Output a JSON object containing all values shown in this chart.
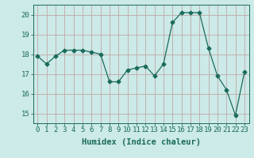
{
  "x": [
    0,
    1,
    2,
    3,
    4,
    5,
    6,
    7,
    8,
    9,
    10,
    11,
    12,
    13,
    14,
    15,
    16,
    17,
    18,
    19,
    20,
    21,
    22,
    23
  ],
  "y": [
    17.9,
    17.5,
    17.9,
    18.2,
    18.2,
    18.2,
    18.1,
    18.0,
    16.6,
    16.6,
    17.2,
    17.3,
    17.4,
    16.9,
    17.5,
    19.6,
    20.1,
    20.1,
    20.1,
    18.3,
    16.9,
    16.2,
    14.9,
    17.1
  ],
  "line_color": "#1a6b5a",
  "marker": "D",
  "marker_size": 2.5,
  "bg_color": "#cceae7",
  "grid_color": "#c0a8a8",
  "xlabel": "Humidex (Indice chaleur)",
  "xlim": [
    -0.5,
    23.5
  ],
  "ylim": [
    14.5,
    20.5
  ],
  "yticks": [
    15,
    16,
    17,
    18,
    19,
    20
  ],
  "xticks": [
    0,
    1,
    2,
    3,
    4,
    5,
    6,
    7,
    8,
    9,
    10,
    11,
    12,
    13,
    14,
    15,
    16,
    17,
    18,
    19,
    20,
    21,
    22,
    23
  ],
  "tick_color": "#1a6b5a",
  "label_color": "#1a6b5a",
  "font_size": 6.5,
  "xlabel_fontsize": 7.5
}
